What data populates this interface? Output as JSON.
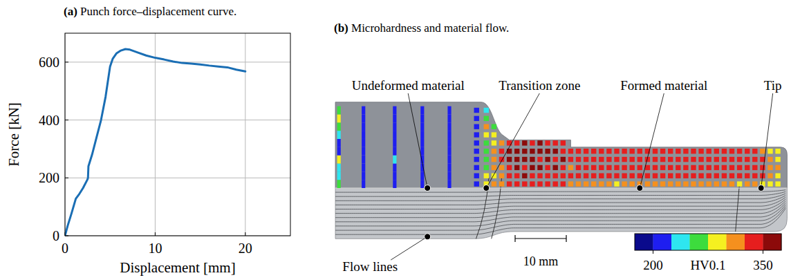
{
  "chart_data": {
    "type": "line",
    "title": "(a) Punch force–displacement curve.",
    "x_label": "Displacement [mm]",
    "y_label": "Force [kN]",
    "x": [
      0,
      0.3,
      0.7,
      1.2,
      1.6,
      2.0,
      2.5,
      2.55,
      2.6,
      3.0,
      3.5,
      4.0,
      4.5,
      5.0,
      5.3,
      5.7,
      6.2,
      6.7,
      7.2,
      8,
      9,
      10,
      11,
      12,
      13,
      14,
      15,
      16,
      17,
      18,
      19,
      20
    ],
    "values": [
      0,
      35,
      75,
      128,
      145,
      165,
      195,
      200,
      240,
      280,
      340,
      400,
      480,
      585,
      612,
      630,
      640,
      645,
      643,
      634,
      623,
      615,
      609,
      602,
      597,
      595,
      592,
      588,
      585,
      582,
      574,
      568
    ],
    "color": "#1a6eb4",
    "xlim": [
      0,
      25
    ],
    "ylim": [
      0,
      700
    ],
    "xticks": [
      0,
      10,
      20
    ],
    "yticks": [
      0,
      200,
      400,
      600
    ],
    "grid": true
  },
  "figure_b": {
    "title": "(b) Microhardness and material flow.",
    "annotations": [
      {
        "text": "Undeformed material",
        "x": 18,
        "y": 0
      },
      {
        "text": "Transition zone",
        "x": 29.5,
        "y": 0
      },
      {
        "text": "Formed material",
        "x": 59.5,
        "y": 0
      },
      {
        "text": "Tip",
        "x": 83.2,
        "y": 0
      },
      {
        "text": "Flow lines",
        "x": 18,
        "y": -9.5
      }
    ],
    "scale_bar": {
      "length": 10,
      "label": "10 mm"
    },
    "colorbar": {
      "range": [
        175,
        375
      ],
      "ticks": [
        200,
        350
      ],
      "label": "HV0.1",
      "colors": [
        "#0a0a8c",
        "#1e1ef0",
        "#2ee6f0",
        "#3ddc3d",
        "#f5f020",
        "#f5901e",
        "#e61e1e",
        "#8c0a0a"
      ]
    },
    "hardness": {
      "y": [
        0.8,
        2.4,
        4.0,
        5.6,
        7.2,
        8.8,
        10.4,
        12.0,
        13.6,
        15.2
      ],
      "columns": [
        {
          "x": 0.7,
          "values": [
            260,
            240,
            230,
            285,
            215,
            205,
            230,
            250,
            290,
            270
          ]
        },
        {
          "x": 5.5,
          "values": [
            210,
            212,
            208,
            214,
            210,
            209,
            211,
            213,
            210,
            208
          ]
        },
        {
          "x": 11.6,
          "values": [
            210,
            208,
            212,
            238,
            210,
            210,
            209,
            211,
            212,
            210
          ]
        },
        {
          "x": 17.0,
          "values": [
            211,
            209,
            210,
            213,
            210,
            208,
            212,
            210,
            209,
            211
          ]
        },
        {
          "x": 22.3,
          "values": [
            210,
            212,
            209,
            211,
            210,
            213,
            208,
            210,
            212,
            209
          ]
        },
        {
          "x": 27.6,
          "values": [
            212,
            210,
            211,
            209,
            213,
            210,
            208,
            211,
            210,
            212
          ]
        },
        {
          "x": 29.5,
          "values": [
            290,
            280,
            270,
            265,
            260,
            255,
            285,
            300,
            260,
            240
          ]
        },
        {
          "x": 31,
          "values": [
            300,
            295,
            300,
            310,
            305,
            290,
            280,
            270
          ]
        },
        {
          "x": 32.5,
          "values": [
            320,
            315,
            320,
            325,
            330,
            320
          ]
        },
        {
          "x": 34,
          "values": [
            330,
            340,
            345,
            350,
            355,
            340
          ]
        },
        {
          "x": 35.5,
          "values": [
            335,
            345,
            355,
            360,
            350,
            345
          ]
        },
        {
          "x": 37,
          "values": [
            340,
            350,
            345,
            355,
            360,
            350
          ]
        },
        {
          "x": 38.5,
          "values": [
            330,
            345,
            350,
            360,
            355,
            345
          ]
        },
        {
          "x": 40,
          "values": [
            340,
            335,
            350,
            345,
            360,
            350
          ]
        },
        {
          "x": 41.5,
          "values": [
            335,
            345,
            340,
            355,
            350,
            340
          ]
        },
        {
          "x": 43,
          "values": [
            330,
            340,
            350,
            345,
            355,
            345
          ]
        },
        {
          "x": 44.5,
          "values": [
            325,
            340,
            345,
            350,
            345,
            340
          ]
        },
        {
          "x": 46,
          "values": [
            310,
            330,
            320,
            340,
            335
          ]
        },
        {
          "x": 47.5,
          "values": [
            320,
            335,
            340,
            325,
            345
          ]
        },
        {
          "x": 49,
          "values": [
            305,
            340,
            330,
            345,
            335
          ]
        },
        {
          "x": 50.5,
          "values": [
            315,
            330,
            345,
            335,
            340
          ]
        },
        {
          "x": 52,
          "values": [
            310,
            345,
            335,
            340,
            330
          ]
        },
        {
          "x": 53.5,
          "values": [
            320,
            330,
            340,
            345,
            335
          ]
        },
        {
          "x": 55,
          "values": [
            295,
            335,
            345,
            330,
            340
          ]
        },
        {
          "x": 56.5,
          "values": [
            310,
            340,
            330,
            345,
            335
          ]
        },
        {
          "x": 58,
          "values": [
            315,
            330,
            345,
            335,
            340
          ]
        },
        {
          "x": 59.5,
          "values": [
            305,
            345,
            335,
            340,
            330
          ]
        },
        {
          "x": 61,
          "values": [
            320,
            335,
            340,
            345,
            335
          ]
        },
        {
          "x": 62.5,
          "values": [
            310,
            340,
            330,
            335,
            345
          ]
        },
        {
          "x": 64,
          "values": [
            300,
            330,
            345,
            340,
            335
          ]
        },
        {
          "x": 65.5,
          "values": [
            315,
            345,
            335,
            330,
            340
          ]
        },
        {
          "x": 67,
          "values": [
            310,
            335,
            340,
            345,
            330
          ]
        },
        {
          "x": 68.5,
          "values": [
            320,
            340,
            330,
            335,
            345
          ]
        },
        {
          "x": 70,
          "values": [
            305,
            330,
            345,
            340,
            335
          ]
        },
        {
          "x": 71.5,
          "values": [
            315,
            345,
            335,
            330,
            340
          ]
        },
        {
          "x": 73,
          "values": [
            310,
            335,
            340,
            345,
            330
          ]
        },
        {
          "x": 74.5,
          "values": [
            300,
            340,
            330,
            335,
            345
          ]
        },
        {
          "x": 76,
          "values": [
            315,
            330,
            345,
            340,
            335
          ]
        },
        {
          "x": 77.5,
          "values": [
            310,
            345,
            335,
            330,
            340
          ]
        },
        {
          "x": 79,
          "values": [
            295,
            335,
            340,
            345,
            330
          ]
        },
        {
          "x": 80.5,
          "values": [
            310,
            340,
            330,
            335,
            345
          ]
        },
        {
          "x": 82,
          "values": [
            305,
            330,
            345,
            340,
            335
          ]
        },
        {
          "x": 83.5,
          "values": [
            290,
            345,
            335,
            330,
            320
          ]
        },
        {
          "x": 85,
          "values": [
            285,
            310,
            320,
            300,
            290
          ]
        },
        {
          "x": 86.5,
          "values": [
            280,
            295,
            300,
            290,
            285
          ]
        }
      ]
    }
  }
}
